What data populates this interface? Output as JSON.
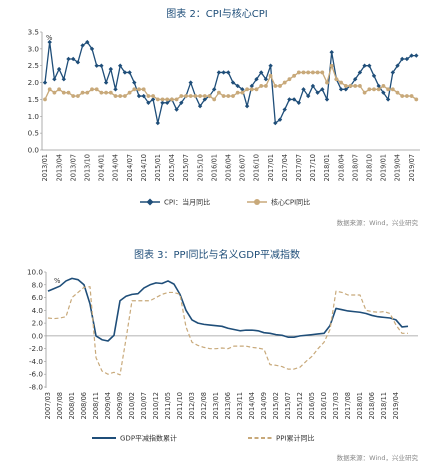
{
  "chart_data": [
    {
      "type": "line",
      "title": "图表 2：CPI与核心CPI",
      "unit": "%",
      "ylim": [
        0.0,
        3.5
      ],
      "yticks": [
        "0.0",
        "0.5",
        "1.0",
        "1.5",
        "2.0",
        "2.5",
        "3.0",
        "3.5"
      ],
      "x_tick_labels": [
        "2013/01",
        "2013/04",
        "2013/07",
        "2013/10",
        "2014/01",
        "2014/04",
        "2014/07",
        "2014/10",
        "2015/01",
        "2015/04",
        "2015/07",
        "2015/10",
        "2016/01",
        "2016/04",
        "2016/07",
        "2016/10",
        "2017/01",
        "2017/04",
        "2017/07",
        "2017/10",
        "2018/01",
        "2018/04",
        "2018/07",
        "2018/10",
        "2019/01",
        "2019/04",
        "2019/07"
      ],
      "x_start": "2013/01",
      "x_step": "month",
      "series": [
        {
          "name": "CPI：当月同比",
          "color": "#1f4e79",
          "marker": "diamond",
          "values": [
            2.0,
            3.2,
            2.1,
            2.4,
            2.1,
            2.7,
            2.7,
            2.6,
            3.1,
            3.2,
            3.0,
            2.5,
            2.5,
            2.0,
            2.4,
            1.8,
            2.5,
            2.3,
            2.3,
            2.0,
            1.6,
            1.6,
            1.4,
            1.5,
            0.8,
            1.4,
            1.4,
            1.5,
            1.2,
            1.4,
            1.6,
            2.0,
            1.6,
            1.3,
            1.5,
            1.6,
            1.8,
            2.3,
            2.3,
            2.3,
            2.0,
            1.9,
            1.8,
            1.3,
            1.9,
            2.1,
            2.3,
            2.1,
            2.5,
            0.8,
            0.9,
            1.2,
            1.5,
            1.5,
            1.4,
            1.8,
            1.6,
            1.9,
            1.7,
            1.8,
            1.5,
            2.9,
            2.1,
            1.8,
            1.8,
            1.9,
            2.1,
            2.3,
            2.5,
            2.5,
            2.2,
            1.9,
            1.7,
            1.5,
            2.3,
            2.5,
            2.7,
            2.7,
            2.8,
            2.8
          ]
        },
        {
          "name": "核心CPI同比",
          "color": "#c8a97a",
          "marker": "circle",
          "values": [
            1.5,
            1.8,
            1.7,
            1.8,
            1.7,
            1.7,
            1.6,
            1.6,
            1.7,
            1.7,
            1.8,
            1.8,
            1.7,
            1.7,
            1.7,
            1.6,
            1.6,
            1.6,
            1.7,
            1.8,
            1.8,
            1.8,
            1.6,
            1.6,
            1.5,
            1.5,
            1.5,
            1.5,
            1.5,
            1.6,
            1.6,
            1.6,
            1.6,
            1.6,
            1.6,
            1.6,
            1.5,
            1.7,
            1.6,
            1.6,
            1.6,
            1.7,
            1.7,
            1.8,
            1.8,
            1.8,
            1.9,
            1.9,
            2.2,
            1.9,
            1.9,
            2.0,
            2.1,
            2.2,
            2.3,
            2.3,
            2.3,
            2.3,
            2.3,
            2.3,
            2.0,
            2.5,
            2.1,
            2.0,
            1.9,
            1.9,
            1.9,
            1.9,
            1.7,
            1.8,
            1.8,
            1.8,
            1.9,
            1.8,
            1.8,
            1.7,
            1.6,
            1.6,
            1.6,
            1.5
          ]
        }
      ],
      "source": "数据来源：Wind，兴业研究"
    },
    {
      "type": "line",
      "title": "图表 3：PPI同比与名义GDP平减指数",
      "unit": "%",
      "ylim": [
        -8.0,
        10.0
      ],
      "yticks": [
        "-8.0",
        "-6.0",
        "-4.0",
        "-2.0",
        "0.0",
        "2.0",
        "4.0",
        "6.0",
        "8.0",
        "10.0"
      ],
      "x_tick_labels": [
        "2007/03",
        "2007/08",
        "2008/01",
        "2008/06",
        "2008/11",
        "2009/04",
        "2009/09",
        "2010/02",
        "2010/07",
        "2010/12",
        "2011/05",
        "2011/10",
        "2012/03",
        "2012/08",
        "2013/01",
        "2013/06",
        "2013/11",
        "2014/04",
        "2014/09",
        "2015/02",
        "2015/07",
        "2015/12",
        "2016/05",
        "2016/10",
        "2017/03",
        "2017/08",
        "2018/01",
        "2018/06",
        "2018/11",
        "2019/04"
      ],
      "x_start": "2007/03",
      "x_step": "quarter",
      "series": [
        {
          "name": "GDP平减指数累计",
          "color": "#1f4e79",
          "style": "solid",
          "values": [
            7.0,
            7.4,
            7.8,
            8.6,
            9.0,
            8.8,
            8.0,
            5.0,
            0.0,
            -0.6,
            -0.8,
            0.1,
            5.5,
            6.2,
            6.5,
            6.6,
            7.5,
            8.0,
            8.3,
            8.2,
            8.6,
            8.1,
            6.5,
            4.0,
            2.5,
            2.0,
            1.8,
            1.7,
            1.6,
            1.5,
            1.2,
            1.0,
            0.8,
            0.9,
            0.9,
            0.8,
            0.5,
            0.4,
            0.2,
            0.1,
            -0.2,
            -0.2,
            0.0,
            0.1,
            0.2,
            0.3,
            0.4,
            1.6,
            4.3,
            4.1,
            3.9,
            3.8,
            3.7,
            3.5,
            3.2,
            3.0,
            2.9,
            2.8,
            2.5,
            1.4,
            1.5
          ]
        },
        {
          "name": "PPI累计同比",
          "color": "#c8a97a",
          "style": "dashed",
          "values": [
            2.8,
            2.7,
            2.8,
            3.0,
            6.0,
            6.8,
            7.6,
            7.7,
            -3.4,
            -5.5,
            -6.0,
            -5.7,
            -6.1,
            -0.5,
            5.5,
            5.5,
            5.5,
            5.5,
            6.0,
            6.5,
            6.8,
            6.8,
            6.5,
            1.4,
            -1.0,
            -1.5,
            -1.8,
            -2.0,
            -2.0,
            -1.9,
            -2.0,
            -1.6,
            -1.6,
            -1.6,
            -1.8,
            -1.9,
            -2.1,
            -4.5,
            -4.6,
            -4.8,
            -5.2,
            -5.2,
            -4.9,
            -4.0,
            -3.2,
            -2.0,
            -1.0,
            1.0,
            7.0,
            6.8,
            6.4,
            6.4,
            6.4,
            4.0,
            3.8,
            3.7,
            3.8,
            3.5,
            1.7,
            0.4,
            0.4
          ]
        }
      ],
      "source": "数据来源：Wind，兴业研究"
    }
  ]
}
